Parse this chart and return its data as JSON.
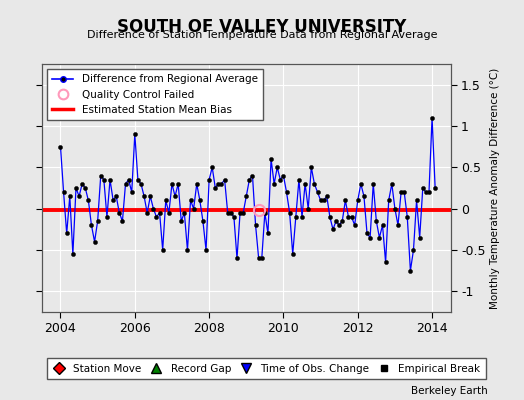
{
  "title": "SOUTH OF VALLEY UNIVERSITY",
  "subtitle": "Difference of Station Temperature Data from Regional Average",
  "ylabel_right": "Monthly Temperature Anomaly Difference (°C)",
  "background_color": "#e8e8e8",
  "plot_bg_color": "#e8e8e8",
  "xlim": [
    2003.5,
    2014.5
  ],
  "ylim": [
    -1.25,
    1.75
  ],
  "yticks": [
    -1,
    -0.5,
    0,
    0.5,
    1,
    1.5
  ],
  "xticks": [
    2004,
    2006,
    2008,
    2010,
    2012,
    2014
  ],
  "bias_level": -0.02,
  "watermark": "Berkeley Earth",
  "line_color": "#0000ff",
  "bias_color": "#ff0000",
  "qc_color": "#ff99bb",
  "data_x": [
    2004.0,
    2004.083,
    2004.167,
    2004.25,
    2004.333,
    2004.417,
    2004.5,
    2004.583,
    2004.667,
    2004.75,
    2004.833,
    2004.917,
    2005.0,
    2005.083,
    2005.167,
    2005.25,
    2005.333,
    2005.417,
    2005.5,
    2005.583,
    2005.667,
    2005.75,
    2005.833,
    2005.917,
    2006.0,
    2006.083,
    2006.167,
    2006.25,
    2006.333,
    2006.417,
    2006.5,
    2006.583,
    2006.667,
    2006.75,
    2006.833,
    2006.917,
    2007.0,
    2007.083,
    2007.167,
    2007.25,
    2007.333,
    2007.417,
    2007.5,
    2007.583,
    2007.667,
    2007.75,
    2007.833,
    2007.917,
    2008.0,
    2008.083,
    2008.167,
    2008.25,
    2008.333,
    2008.417,
    2008.5,
    2008.583,
    2008.667,
    2008.75,
    2008.833,
    2008.917,
    2009.0,
    2009.083,
    2009.167,
    2009.25,
    2009.333,
    2009.417,
    2009.5,
    2009.583,
    2009.667,
    2009.75,
    2009.833,
    2009.917,
    2010.0,
    2010.083,
    2010.167,
    2010.25,
    2010.333,
    2010.417,
    2010.5,
    2010.583,
    2010.667,
    2010.75,
    2010.833,
    2010.917,
    2011.0,
    2011.083,
    2011.167,
    2011.25,
    2011.333,
    2011.417,
    2011.5,
    2011.583,
    2011.667,
    2011.75,
    2011.833,
    2011.917,
    2012.0,
    2012.083,
    2012.167,
    2012.25,
    2012.333,
    2012.417,
    2012.5,
    2012.583,
    2012.667,
    2012.75,
    2012.833,
    2012.917,
    2013.0,
    2013.083,
    2013.167,
    2013.25,
    2013.333,
    2013.417,
    2013.5,
    2013.583,
    2013.667,
    2013.75,
    2013.833,
    2013.917,
    2014.0,
    2014.083
  ],
  "data_y": [
    0.75,
    0.2,
    -0.3,
    0.15,
    -0.55,
    0.25,
    0.15,
    0.3,
    0.25,
    0.1,
    -0.2,
    -0.4,
    -0.15,
    0.4,
    0.35,
    -0.1,
    0.35,
    0.1,
    0.15,
    -0.05,
    -0.15,
    0.3,
    0.35,
    0.2,
    0.9,
    0.35,
    0.3,
    0.15,
    -0.05,
    0.15,
    0.0,
    -0.1,
    -0.05,
    -0.5,
    0.1,
    -0.05,
    0.3,
    0.15,
    0.3,
    -0.15,
    -0.05,
    -0.5,
    0.1,
    0.0,
    0.3,
    0.1,
    -0.15,
    -0.5,
    0.35,
    0.5,
    0.25,
    0.3,
    0.3,
    0.35,
    -0.05,
    -0.05,
    -0.1,
    -0.6,
    -0.05,
    -0.05,
    0.15,
    0.35,
    0.4,
    -0.2,
    -0.6,
    -0.6,
    -0.05,
    -0.3,
    0.6,
    0.3,
    0.5,
    0.35,
    0.4,
    0.2,
    -0.05,
    -0.55,
    -0.1,
    0.35,
    -0.1,
    0.3,
    0.0,
    0.5,
    0.3,
    0.2,
    0.1,
    0.1,
    0.15,
    -0.1,
    -0.25,
    -0.15,
    -0.2,
    -0.15,
    0.1,
    -0.1,
    -0.1,
    -0.2,
    0.1,
    0.3,
    0.15,
    -0.3,
    -0.35,
    0.3,
    -0.15,
    -0.35,
    -0.2,
    -0.65,
    0.1,
    0.3,
    0.0,
    -0.2,
    0.2,
    0.2,
    -0.1,
    -0.75,
    -0.5,
    0.1,
    -0.35,
    0.25,
    0.2,
    0.2,
    1.1,
    0.25
  ],
  "qc_failed_x": [
    2009.333
  ],
  "qc_failed_y": [
    -0.02
  ]
}
